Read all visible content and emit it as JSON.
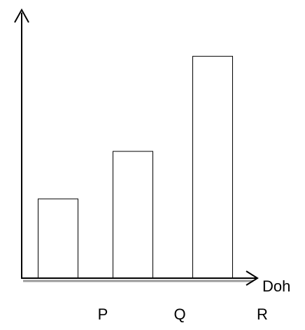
{
  "chart_data": {
    "type": "bar",
    "categories": [
      "P",
      "Q",
      "R"
    ],
    "values": [
      1.5,
      2.4,
      4.2
    ],
    "xlabel": "Doh",
    "ylabel": "",
    "title": "",
    "tick_labels_x": [
      "P",
      "Q",
      "R"
    ],
    "grid": false,
    "legend": "none",
    "colors": {
      "bar_fill": "#ffffff",
      "bar_stroke": "#000000",
      "axis": "#000000",
      "axis_shadow": "#9a9a9a"
    }
  }
}
